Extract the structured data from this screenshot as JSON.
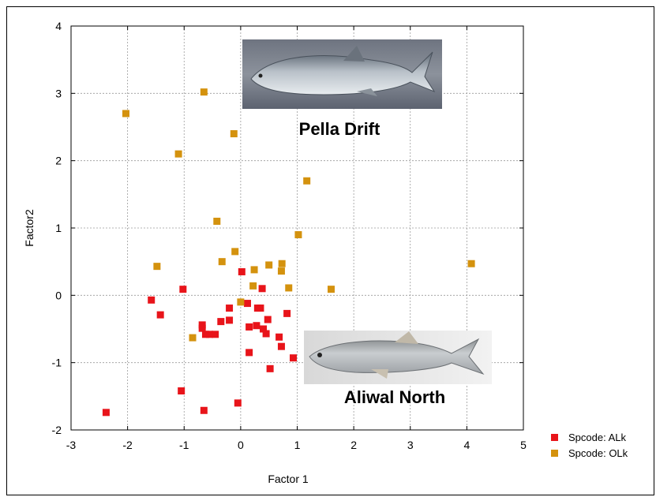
{
  "chart_data": {
    "type": "scatter",
    "title": "",
    "xlabel": "Factor 1",
    "ylabel": "Factor2",
    "xlim": [
      -3,
      5
    ],
    "ylim": [
      -2,
      4
    ],
    "x_ticks": [
      -3,
      -2,
      -1,
      0,
      1,
      2,
      3,
      4,
      5
    ],
    "y_ticks": [
      -2,
      -1,
      0,
      1,
      2,
      3,
      4
    ],
    "grid": true,
    "legend_position": "bottom-right outside",
    "series": [
      {
        "name": "Spcode: ALk",
        "color": "#e8141a",
        "marker": "square",
        "points": [
          [
            -2.38,
            -1.74
          ],
          [
            -1.58,
            -0.07
          ],
          [
            -1.42,
            -0.29
          ],
          [
            -1.02,
            0.09
          ],
          [
            -1.05,
            -1.42
          ],
          [
            -0.68,
            -0.44
          ],
          [
            -0.68,
            -0.49
          ],
          [
            -0.62,
            -0.58
          ],
          [
            -0.55,
            -0.58
          ],
          [
            -0.45,
            -0.58
          ],
          [
            -0.35,
            -0.39
          ],
          [
            -0.2,
            -0.19
          ],
          [
            -0.2,
            -0.37
          ],
          [
            -0.65,
            -1.71
          ],
          [
            -0.05,
            -1.6
          ],
          [
            0.02,
            0.35
          ],
          [
            0.12,
            -0.12
          ],
          [
            0.15,
            -0.47
          ],
          [
            0.15,
            -0.85
          ],
          [
            0.28,
            -0.45
          ],
          [
            0.3,
            -0.19
          ],
          [
            0.35,
            -0.19
          ],
          [
            0.38,
            0.1
          ],
          [
            0.4,
            -0.5
          ],
          [
            0.45,
            -0.57
          ],
          [
            0.48,
            -0.36
          ],
          [
            0.52,
            -1.09
          ],
          [
            0.68,
            -0.62
          ],
          [
            0.72,
            -0.76
          ],
          [
            0.82,
            -0.27
          ],
          [
            0.93,
            -0.93
          ]
        ]
      },
      {
        "name": "Spcode: OLk",
        "color": "#d4920e",
        "marker": "square",
        "points": [
          [
            -2.03,
            2.7
          ],
          [
            -1.1,
            2.1
          ],
          [
            -0.65,
            3.02
          ],
          [
            -0.12,
            2.4
          ],
          [
            -1.48,
            0.43
          ],
          [
            -0.85,
            -0.63
          ],
          [
            -0.42,
            1.1
          ],
          [
            -0.33,
            0.5
          ],
          [
            -0.1,
            0.65
          ],
          [
            0.0,
            -0.1
          ],
          [
            0.22,
            0.14
          ],
          [
            0.24,
            0.38
          ],
          [
            0.5,
            0.45
          ],
          [
            0.73,
            0.47
          ],
          [
            0.72,
            0.36
          ],
          [
            0.85,
            0.11
          ],
          [
            1.02,
            0.9
          ],
          [
            1.17,
            1.7
          ],
          [
            1.6,
            0.09
          ],
          [
            4.08,
            0.47
          ]
        ]
      }
    ],
    "annotations": [
      {
        "text": "Pella Drift"
      },
      {
        "text": "Aliwal North"
      }
    ]
  },
  "legend": {
    "items": [
      {
        "label": "Spcode: ALk",
        "color": "#e8141a"
      },
      {
        "label": "Spcode: OLk",
        "color": "#d4920e"
      }
    ]
  }
}
